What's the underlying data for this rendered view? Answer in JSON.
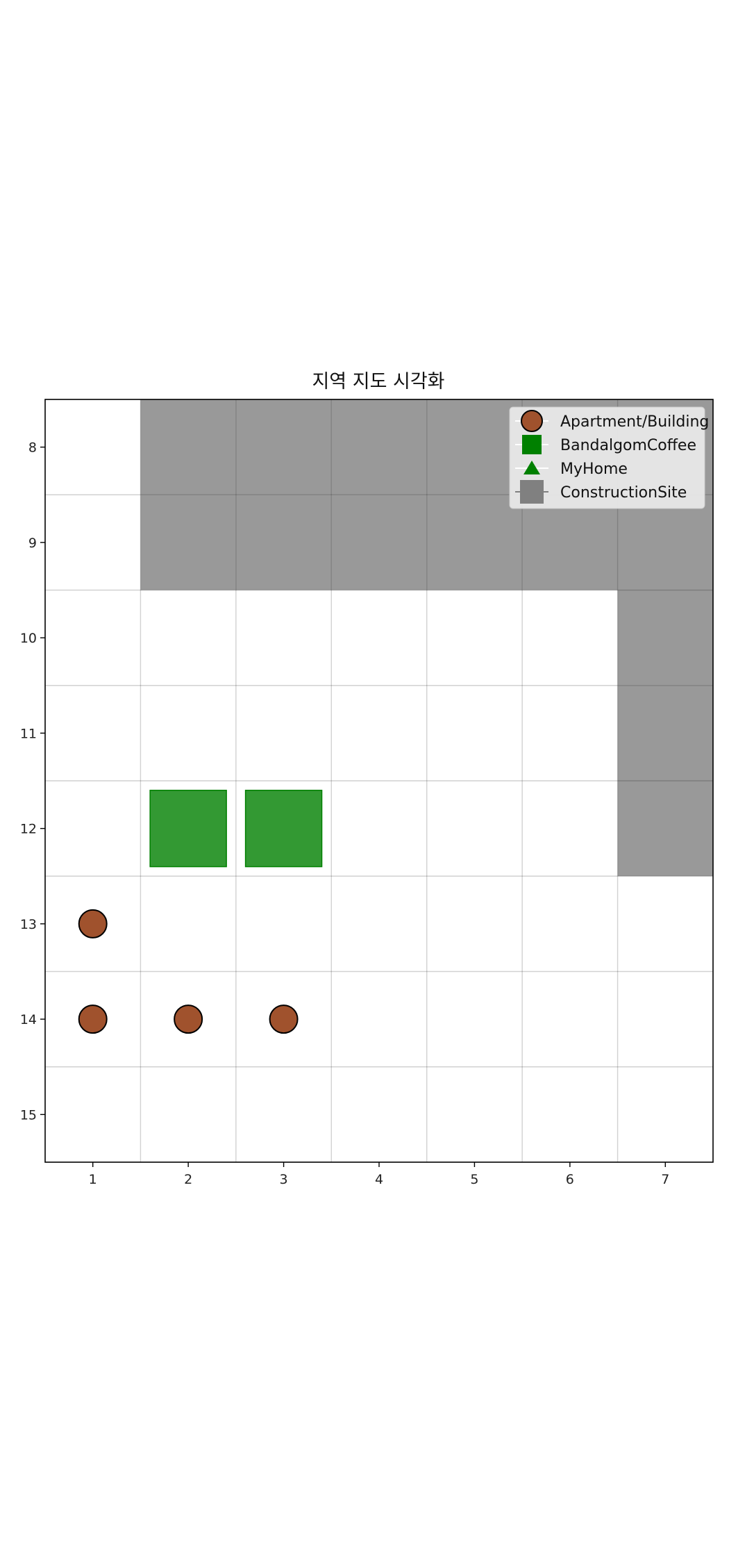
{
  "chart_data": {
    "type": "scatter",
    "title": "지역 지도 시각화",
    "xlabel": "",
    "ylabel": "",
    "x_ticks": [
      1,
      2,
      3,
      4,
      5,
      6,
      7
    ],
    "y_ticks": [
      8,
      9,
      10,
      11,
      12,
      13,
      14,
      15
    ],
    "xlim": [
      0.5,
      7.5
    ],
    "ylim": [
      15.5,
      7.5
    ],
    "y_inverted": true,
    "grid": true,
    "legend_position": "top-right",
    "series": [
      {
        "name": "Apartment/Building",
        "marker": "circle",
        "color": "#a0522d",
        "points": [
          {
            "x": 1,
            "y": 13
          },
          {
            "x": 1,
            "y": 14
          },
          {
            "x": 2,
            "y": 14
          },
          {
            "x": 3,
            "y": 14
          }
        ]
      },
      {
        "name": "BandalgomCoffee",
        "marker": "square",
        "color": "#008000",
        "points": [
          {
            "x": 2,
            "y": 12
          },
          {
            "x": 3,
            "y": 12
          }
        ]
      },
      {
        "name": "MyHome",
        "marker": "triangle",
        "color": "#008000",
        "points": []
      },
      {
        "name": "ConstructionSite",
        "marker": "cell",
        "color": "#808080",
        "points": [
          {
            "x": 2,
            "y": 8
          },
          {
            "x": 3,
            "y": 8
          },
          {
            "x": 4,
            "y": 8
          },
          {
            "x": 5,
            "y": 8
          },
          {
            "x": 6,
            "y": 8
          },
          {
            "x": 7,
            "y": 8
          },
          {
            "x": 2,
            "y": 9
          },
          {
            "x": 3,
            "y": 9
          },
          {
            "x": 4,
            "y": 9
          },
          {
            "x": 5,
            "y": 9
          },
          {
            "x": 6,
            "y": 9
          },
          {
            "x": 7,
            "y": 9
          },
          {
            "x": 7,
            "y": 10
          },
          {
            "x": 7,
            "y": 11
          },
          {
            "x": 7,
            "y": 12
          }
        ]
      }
    ]
  }
}
